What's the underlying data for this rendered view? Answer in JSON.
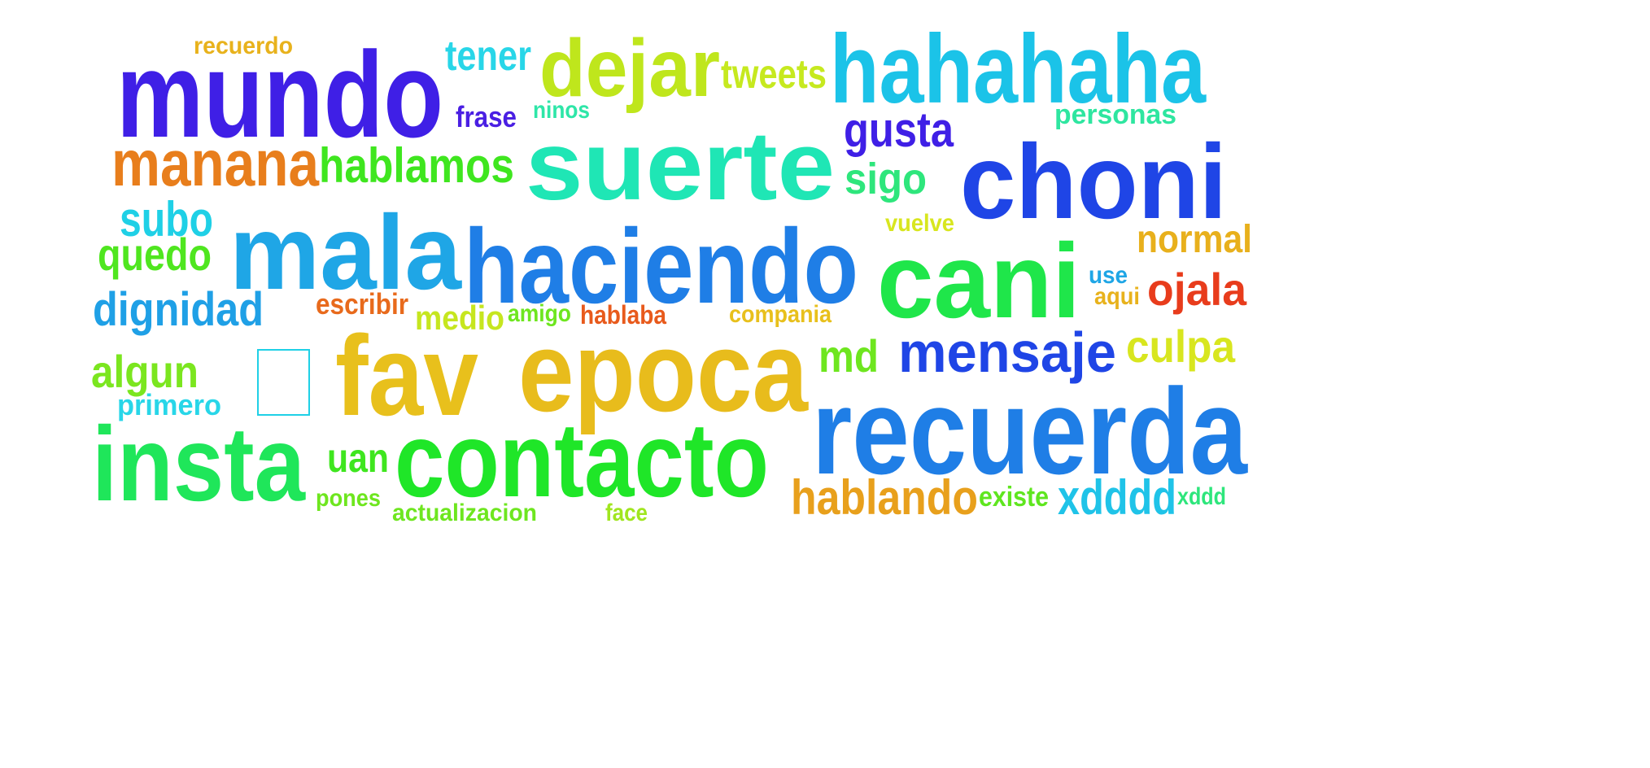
{
  "words": [
    {
      "text": "recuerdo",
      "color": "#e8b21c"
    },
    {
      "text": "tener",
      "color": "#28d6e8"
    },
    {
      "text": "dejar",
      "color": "#bfe61c"
    },
    {
      "text": "tweets",
      "color": "#c6e91f"
    },
    {
      "text": "hahahaha",
      "color": "#1bc3e8"
    },
    {
      "text": "mundo",
      "color": "#3f1fe6"
    },
    {
      "text": "frase",
      "color": "#4a1fe3"
    },
    {
      "text": "ninos",
      "color": "#2ee6a8"
    },
    {
      "text": "personas",
      "color": "#2ee6a0"
    },
    {
      "text": "gusta",
      "color": "#3f1fe6"
    },
    {
      "text": "suerte",
      "color": "#1fe6b5"
    },
    {
      "text": "choni",
      "color": "#1f45e6"
    },
    {
      "text": "manana",
      "color": "#e87e1c"
    },
    {
      "text": "hablamos",
      "color": "#3fe61f"
    },
    {
      "text": "sigo",
      "color": "#2ee67c"
    },
    {
      "text": "subo",
      "color": "#1fd0e6"
    },
    {
      "text": "vuelve",
      "color": "#d8e61f"
    },
    {
      "text": "normal",
      "color": "#e8b01c"
    },
    {
      "text": "mala",
      "color": "#1fa6e6"
    },
    {
      "text": "haciendo",
      "color": "#1f7ee6"
    },
    {
      "text": "cani",
      "color": "#1fe64a"
    },
    {
      "text": "quedo",
      "color": "#4fe61f"
    },
    {
      "text": "use",
      "color": "#1fa6e6"
    },
    {
      "text": "aqui",
      "color": "#e8b21c"
    },
    {
      "text": "ojala",
      "color": "#e83c1c"
    },
    {
      "text": "dignidad",
      "color": "#1fa0e6"
    },
    {
      "text": "escribir",
      "color": "#e86a1c"
    },
    {
      "text": "medio",
      "color": "#c6e61f"
    },
    {
      "text": "amigo",
      "color": "#6ee61f"
    },
    {
      "text": "hablaba",
      "color": "#e85a1c"
    },
    {
      "text": "compania",
      "color": "#e8c01c"
    },
    {
      "text": "fav",
      "color": "#e8c01c"
    },
    {
      "text": "epoca",
      "color": "#e8bc1c"
    },
    {
      "text": "md",
      "color": "#6ee61f"
    },
    {
      "text": "mensaje",
      "color": "#1f45e6"
    },
    {
      "text": "culpa",
      "color": "#d8e61f"
    },
    {
      "text": "algun",
      "color": "#7be61f"
    },
    {
      "text": "primero",
      "color": "#28d6e8"
    },
    {
      "text": "recuerda",
      "color": "#1f7ee6"
    },
    {
      "text": "insta",
      "color": "#1fe65a"
    },
    {
      "text": "uan",
      "color": "#3fe61f"
    },
    {
      "text": "contacto",
      "color": "#1fe628"
    },
    {
      "text": "hablando",
      "color": "#e8a01c"
    },
    {
      "text": "existe",
      "color": "#5fe61f"
    },
    {
      "text": "xdddd",
      "color": "#1fc3e8"
    },
    {
      "text": "xddd",
      "color": "#2ee67c"
    },
    {
      "text": "pones",
      "color": "#6ee61f"
    },
    {
      "text": "actualizacion",
      "color": "#6ee61f"
    },
    {
      "text": "face",
      "color": "#a0e61f"
    }
  ],
  "glyph_box": {
    "stroke": "#1fd0e6"
  }
}
